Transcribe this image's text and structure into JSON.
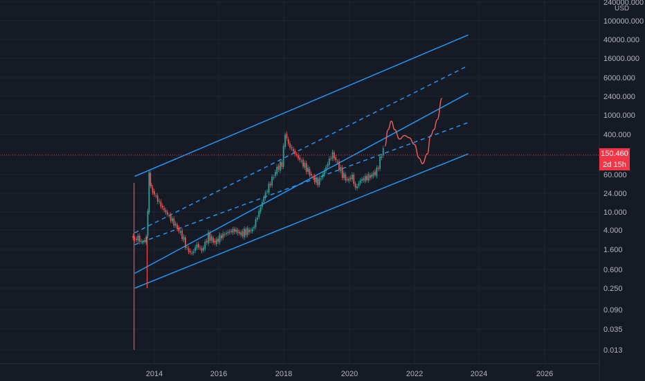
{
  "chart_data": {
    "type": "candlestick",
    "scale": "log",
    "currency_label": "USD",
    "x_ticks": [
      "2014",
      "2016",
      "2018",
      "2020",
      "2022",
      "2024",
      "2026"
    ],
    "y_ticks": [
      "240000.000",
      "100000.000",
      "40000.000",
      "16000.000",
      "6000.000",
      "2400.000",
      "1000.000",
      "400.000",
      "60.000",
      "24.000",
      "10.000",
      "4.000",
      "1.600",
      "0.600",
      "0.250",
      "0.090",
      "0.035",
      "0.013"
    ],
    "last_price": "150.460",
    "countdown": "2d 15h",
    "colors": {
      "background": "#161a25",
      "up": "#26a69a",
      "down": "#ef5350",
      "channel": "#2196f3",
      "projection": "#f0605d",
      "price_line": "#f23645",
      "axis_text": "#b2b5be",
      "grid": "#1f2433"
    },
    "channel_lines": [
      {
        "name": "upper",
        "style": "solid",
        "from": [
          2013.4,
          55
        ],
        "to": [
          2023.6,
          50000
        ]
      },
      {
        "name": "upper-mid",
        "style": "dashed",
        "from": [
          2013.4,
          3.5
        ],
        "to": [
          2023.6,
          11000
        ]
      },
      {
        "name": "middle",
        "style": "solid",
        "from": [
          2013.4,
          0.5
        ],
        "to": [
          2023.6,
          2800
        ]
      },
      {
        "name": "lower-mid",
        "style": "dashed",
        "from": [
          2013.4,
          2.0
        ],
        "to": [
          2023.6,
          700
        ]
      },
      {
        "name": "lower",
        "style": "solid",
        "from": [
          2013.4,
          0.25
        ],
        "to": [
          2023.6,
          160
        ]
      }
    ],
    "price_path": [
      [
        2013.35,
        3
      ],
      [
        2013.45,
        2.5
      ],
      [
        2013.55,
        2.8
      ],
      [
        2013.65,
        2.2
      ],
      [
        2013.8,
        2.6
      ],
      [
        2013.88,
        55
      ],
      [
        2013.95,
        30
      ],
      [
        2014.1,
        20
      ],
      [
        2014.3,
        12
      ],
      [
        2014.5,
        8
      ],
      [
        2014.7,
        5
      ],
      [
        2014.9,
        3
      ],
      [
        2015.05,
        1.6
      ],
      [
        2015.2,
        1.3
      ],
      [
        2015.35,
        2
      ],
      [
        2015.5,
        1.5
      ],
      [
        2015.7,
        3
      ],
      [
        2015.9,
        2.2
      ],
      [
        2016.1,
        3
      ],
      [
        2016.3,
        3.6
      ],
      [
        2016.5,
        4
      ],
      [
        2016.7,
        3.3
      ],
      [
        2016.9,
        3.8
      ],
      [
        2017.05,
        4
      ],
      [
        2017.2,
        8
      ],
      [
        2017.4,
        20
      ],
      [
        2017.6,
        40
      ],
      [
        2017.8,
        80
      ],
      [
        2017.95,
        100
      ],
      [
        2018.05,
        420
      ],
      [
        2018.15,
        250
      ],
      [
        2018.3,
        180
      ],
      [
        2018.5,
        120
      ],
      [
        2018.7,
        80
      ],
      [
        2018.9,
        50
      ],
      [
        2019.05,
        40
      ],
      [
        2019.2,
        60
      ],
      [
        2019.4,
        120
      ],
      [
        2019.5,
        160
      ],
      [
        2019.65,
        100
      ],
      [
        2019.8,
        60
      ],
      [
        2019.95,
        45
      ],
      [
        2020.1,
        55
      ],
      [
        2020.2,
        30
      ],
      [
        2020.35,
        45
      ],
      [
        2020.5,
        50
      ],
      [
        2020.65,
        55
      ],
      [
        2020.85,
        70
      ],
      [
        2020.95,
        120
      ],
      [
        2021.05,
        200
      ]
    ],
    "projection_path": [
      [
        2021.05,
        230
      ],
      [
        2021.15,
        500
      ],
      [
        2021.25,
        750
      ],
      [
        2021.35,
        500
      ],
      [
        2021.5,
        320
      ],
      [
        2021.65,
        380
      ],
      [
        2021.8,
        340
      ],
      [
        2021.95,
        250
      ],
      [
        2022.1,
        130
      ],
      [
        2022.2,
        100
      ],
      [
        2022.35,
        160
      ],
      [
        2022.45,
        380
      ],
      [
        2022.55,
        500
      ],
      [
        2022.65,
        800
      ],
      [
        2022.8,
        2200
      ]
    ],
    "wicks": [
      {
        "x": 2013.38,
        "high": 40,
        "low": 0.012
      },
      {
        "x": 2013.78,
        "high": 3,
        "low": 0.25
      }
    ]
  }
}
